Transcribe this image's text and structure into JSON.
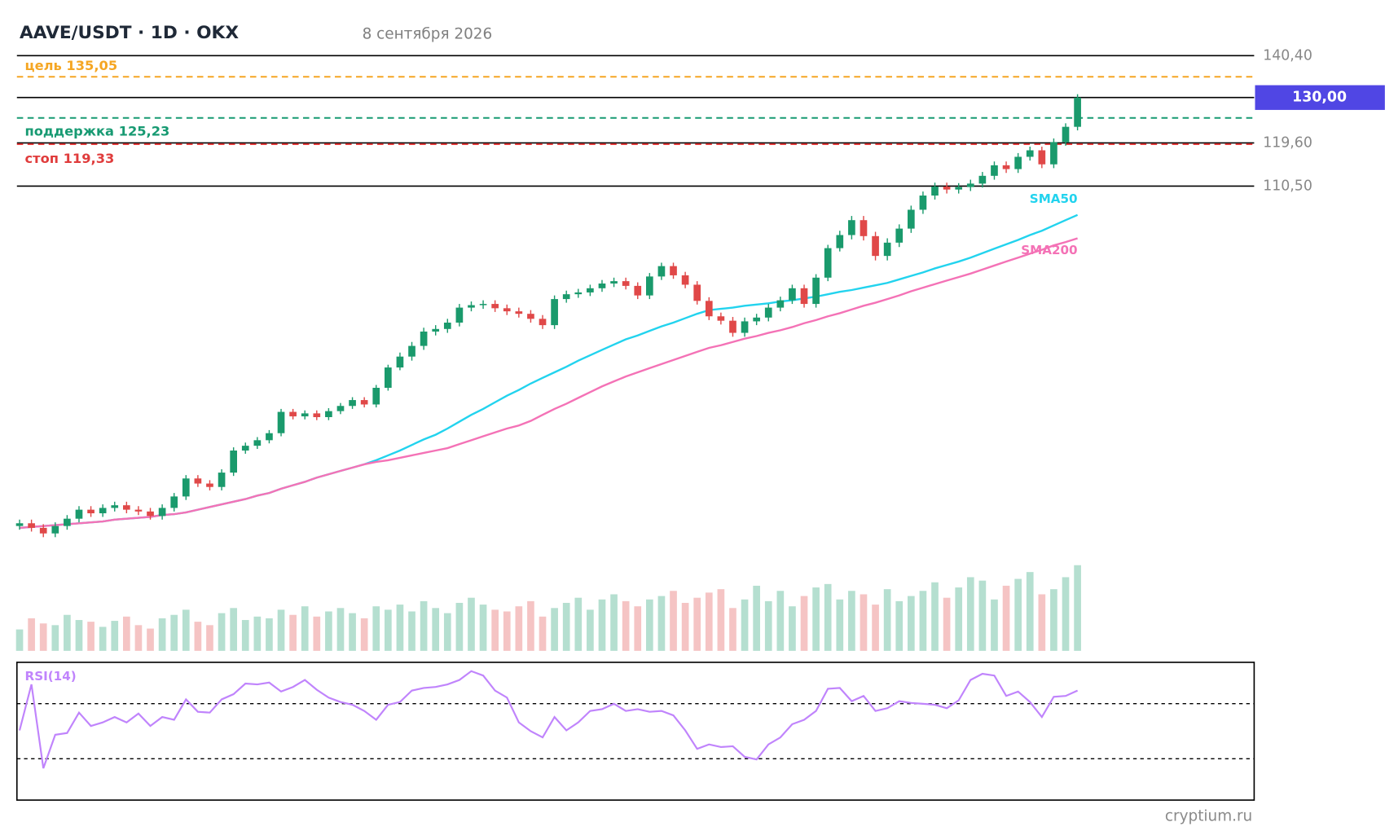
{
  "chart_data": {
    "type": "candlestick",
    "title": "AAVE/USDT · 1D · OKX",
    "subtitle": "8 сентября 2026",
    "log_scale": true,
    "grid": true,
    "ylim": [
      57,
      140.4
    ],
    "yticks": [
      {
        "value": 110.5,
        "label": "110,50"
      },
      {
        "value": 119.6,
        "label": "119,60"
      },
      {
        "value": 140.4,
        "label": "140,40"
      }
    ],
    "up_color": "#1a9a6c",
    "down_color": "#e04848",
    "open": [
      59.2,
      59.5,
      59.0,
      58.4,
      59.2,
      60.0,
      61.0,
      60.6,
      61.2,
      61.5,
      61.0,
      60.8,
      60.3,
      61.2,
      62.5,
      64.6,
      64.0,
      63.6,
      65.3,
      68.0,
      68.6,
      69.3,
      70.2,
      73.0,
      72.4,
      72.8,
      72.3,
      73.1,
      73.8,
      74.6,
      74.0,
      76.3,
      79.2,
      80.8,
      82.4,
      84.6,
      85.0,
      86.0,
      88.4,
      88.8,
      89.0,
      88.3,
      87.8,
      87.4,
      86.6,
      85.6,
      89.8,
      90.6,
      90.9,
      91.6,
      92.4,
      92.8,
      92.0,
      90.4,
      93.6,
      95.4,
      93.8,
      92.2,
      89.5,
      87.0,
      86.3,
      84.4,
      86.2,
      86.8,
      88.4,
      89.6,
      91.6,
      89.0,
      93.4,
      98.6,
      101.0,
      103.8,
      100.8,
      97.2,
      99.6,
      102.2,
      105.8,
      108.6,
      110.4,
      109.8,
      110.3,
      111.0,
      112.6,
      114.8,
      114.0,
      116.6,
      118.0,
      115.0,
      119.8,
      123.2
    ],
    "high": [
      59.9,
      59.9,
      59.4,
      59.6,
      60.4,
      61.4,
      61.4,
      61.6,
      61.9,
      61.9,
      61.4,
      61.2,
      61.6,
      62.9,
      65.0,
      65.0,
      64.4,
      65.7,
      68.4,
      69.0,
      69.7,
      70.6,
      73.4,
      73.4,
      73.2,
      73.2,
      73.5,
      74.2,
      75.0,
      75.0,
      76.7,
      79.6,
      81.4,
      83.0,
      85.2,
      85.6,
      86.6,
      89.0,
      89.4,
      89.6,
      89.6,
      88.9,
      88.4,
      88.0,
      87.2,
      90.4,
      91.2,
      91.5,
      92.2,
      93.0,
      93.4,
      93.4,
      92.6,
      94.2,
      96.0,
      96.0,
      94.4,
      92.8,
      90.1,
      87.6,
      86.9,
      86.8,
      87.4,
      89.0,
      90.2,
      92.2,
      92.2,
      94.0,
      99.2,
      101.8,
      104.6,
      104.6,
      101.6,
      100.4,
      103.0,
      106.6,
      109.4,
      111.2,
      111.2,
      111.1,
      111.8,
      113.4,
      115.6,
      115.6,
      117.4,
      118.8,
      118.8,
      120.6,
      124.0,
      130.8
    ],
    "low": [
      58.8,
      58.6,
      58.0,
      58.0,
      58.8,
      59.6,
      60.2,
      60.2,
      60.8,
      60.6,
      60.4,
      59.9,
      59.9,
      60.8,
      62.1,
      63.6,
      63.2,
      63.2,
      64.9,
      67.6,
      68.2,
      68.9,
      69.8,
      72.0,
      72.0,
      71.9,
      71.9,
      72.7,
      73.4,
      73.6,
      73.6,
      75.9,
      78.8,
      80.2,
      81.8,
      84.0,
      84.4,
      85.4,
      87.8,
      88.2,
      87.7,
      87.2,
      86.8,
      86.0,
      85.0,
      85.0,
      89.2,
      90.0,
      90.3,
      91.0,
      91.8,
      91.4,
      89.8,
      89.8,
      93.0,
      93.2,
      91.6,
      88.9,
      86.4,
      85.7,
      83.8,
      83.8,
      85.6,
      86.2,
      87.8,
      89.0,
      88.4,
      88.4,
      92.8,
      98.0,
      100.2,
      100.0,
      96.4,
      96.4,
      98.8,
      101.4,
      105.0,
      107.8,
      109.0,
      109.0,
      109.5,
      110.2,
      111.8,
      113.2,
      113.2,
      115.8,
      114.2,
      114.2,
      119.0,
      122.4
    ],
    "close": [
      59.5,
      59.0,
      58.4,
      59.2,
      60.0,
      61.0,
      60.6,
      61.2,
      61.5,
      61.0,
      60.8,
      60.3,
      61.2,
      62.5,
      64.6,
      64.0,
      63.6,
      65.3,
      68.0,
      68.6,
      69.3,
      70.2,
      73.0,
      72.4,
      72.8,
      72.3,
      73.1,
      73.8,
      74.6,
      74.0,
      76.3,
      79.2,
      80.8,
      82.4,
      84.6,
      85.0,
      86.0,
      88.4,
      88.8,
      89.0,
      88.3,
      87.8,
      87.4,
      86.6,
      85.6,
      89.8,
      90.6,
      90.9,
      91.6,
      92.4,
      92.8,
      92.0,
      90.4,
      93.6,
      95.4,
      93.8,
      92.2,
      89.5,
      87.0,
      86.3,
      84.4,
      86.2,
      86.8,
      88.4,
      89.6,
      91.6,
      89.0,
      93.4,
      98.6,
      101.0,
      103.8,
      100.8,
      97.2,
      99.6,
      102.2,
      105.8,
      108.6,
      110.4,
      109.8,
      110.3,
      111.0,
      112.6,
      114.8,
      114.0,
      116.6,
      118.0,
      115.0,
      119.8,
      123.2,
      130.0
    ],
    "series": [
      {
        "name": "SMA50",
        "color": "#22d3ee",
        "values": [
          59.0,
          59.1,
          59.2,
          59.3,
          59.4,
          59.5,
          59.6,
          59.7,
          59.9,
          60.0,
          60.1,
          60.2,
          60.4,
          60.5,
          60.7,
          61.0,
          61.3,
          61.6,
          61.9,
          62.2,
          62.6,
          62.9,
          63.4,
          63.8,
          64.2,
          64.7,
          65.1,
          65.5,
          65.9,
          66.3,
          66.8,
          67.4,
          68.0,
          68.7,
          69.4,
          70.0,
          70.8,
          71.7,
          72.6,
          73.4,
          74.3,
          75.2,
          76.0,
          76.9,
          77.7,
          78.5,
          79.3,
          80.2,
          81.0,
          81.8,
          82.6,
          83.4,
          84.0,
          84.7,
          85.4,
          86.0,
          86.7,
          87.4,
          88.0,
          88.2,
          88.4,
          88.7,
          88.9,
          89.1,
          89.4,
          89.6,
          89.9,
          90.2,
          90.6,
          91.0,
          91.3,
          91.7,
          92.1,
          92.5,
          93.1,
          93.7,
          94.3,
          95.0,
          95.6,
          96.2,
          96.9,
          97.7,
          98.5,
          99.3,
          100.1,
          101.0,
          101.8,
          102.8,
          103.8,
          104.8
        ]
      },
      {
        "name": "SMA200",
        "color": "#f472b6",
        "values": [
          59.0,
          59.1,
          59.2,
          59.3,
          59.4,
          59.5,
          59.6,
          59.7,
          59.9,
          60.0,
          60.1,
          60.2,
          60.4,
          60.5,
          60.7,
          61.0,
          61.3,
          61.6,
          61.9,
          62.2,
          62.6,
          62.9,
          63.4,
          63.8,
          64.2,
          64.7,
          65.1,
          65.5,
          65.9,
          66.3,
          66.6,
          66.8,
          67.1,
          67.4,
          67.7,
          68.0,
          68.3,
          68.8,
          69.3,
          69.8,
          70.3,
          70.8,
          71.2,
          71.8,
          72.6,
          73.4,
          74.1,
          74.9,
          75.7,
          76.5,
          77.2,
          77.9,
          78.5,
          79.1,
          79.7,
          80.3,
          80.9,
          81.5,
          82.1,
          82.5,
          83.0,
          83.5,
          83.9,
          84.4,
          84.8,
          85.3,
          85.9,
          86.4,
          87.0,
          87.5,
          88.1,
          88.7,
          89.2,
          89.8,
          90.4,
          91.1,
          91.7,
          92.3,
          92.9,
          93.5,
          94.1,
          94.8,
          95.5,
          96.2,
          96.9,
          97.6,
          98.3,
          99.1,
          99.7,
          100.4
        ]
      }
    ],
    "levels": [
      {
        "label": "цель 135,05",
        "value": 135.05,
        "color": "#f5a623"
      },
      {
        "label": "поддержка 125,23",
        "value": 125.23,
        "color": "#179a72"
      },
      {
        "label": "стоп 119,33",
        "value": 119.33,
        "color": "#e03c3c"
      }
    ],
    "last_price": {
      "value": 130,
      "label": "130,00",
      "color": "#5046e4"
    },
    "volume": {
      "ylim": [
        0,
        100
      ],
      "values": [
        25,
        38,
        32,
        30,
        42,
        36,
        34,
        28,
        35,
        40,
        30,
        26,
        38,
        42,
        48,
        34,
        30,
        44,
        50,
        36,
        40,
        38,
        48,
        42,
        52,
        40,
        46,
        50,
        44,
        38,
        52,
        48,
        54,
        46,
        58,
        50,
        44,
        56,
        62,
        54,
        48,
        46,
        52,
        58,
        40,
        50,
        56,
        62,
        48,
        60,
        66,
        58,
        52,
        60,
        64,
        70,
        56,
        62,
        68,
        72,
        50,
        60,
        76,
        58,
        70,
        52,
        64,
        74,
        78,
        60,
        70,
        66,
        54,
        72,
        58,
        64,
        70,
        80,
        62,
        74,
        86,
        82,
        60,
        76,
        84,
        92,
        66,
        72,
        86,
        100
      ]
    },
    "rsi": {
      "name": "RSI(14)",
      "color": "#c084fc",
      "ylim": [
        0,
        100
      ],
      "levels": [
        70,
        30
      ],
      "values": [
        50.6,
        84.0,
        23.1,
        47.4,
        48.7,
        63.5,
        53.8,
        56.4,
        60.3,
        56.4,
        62.8,
        53.8,
        60.3,
        58.3,
        73.1,
        64.1,
        63.5,
        73.1,
        76.9,
        84.6,
        84.0,
        85.3,
        78.8,
        82.1,
        87.2,
        80.1,
        74.4,
        71.2,
        69.2,
        64.7,
        58.3,
        69.2,
        71.2,
        79.5,
        81.4,
        82.1,
        84.0,
        87.2,
        93.6,
        90.4,
        79.5,
        74.4,
        56.4,
        50.0,
        45.5,
        60.3,
        50.6,
        56.4,
        64.7,
        66.0,
        69.9,
        64.7,
        66.0,
        64.1,
        64.7,
        61.5,
        50.6,
        37.2,
        40.4,
        38.5,
        39.1,
        31.4,
        29.5,
        40.4,
        45.5,
        55.1,
        58.3,
        64.7,
        80.8,
        81.4,
        71.8,
        75.6,
        64.7,
        66.7,
        71.8,
        70.5,
        69.9,
        69.2,
        66.7,
        72.4,
        87.2,
        91.7,
        90.4,
        75.6,
        78.8,
        71.2,
        60.3,
        75.0,
        75.6,
        79.5
      ]
    },
    "watermark": "cryptium.ru"
  }
}
